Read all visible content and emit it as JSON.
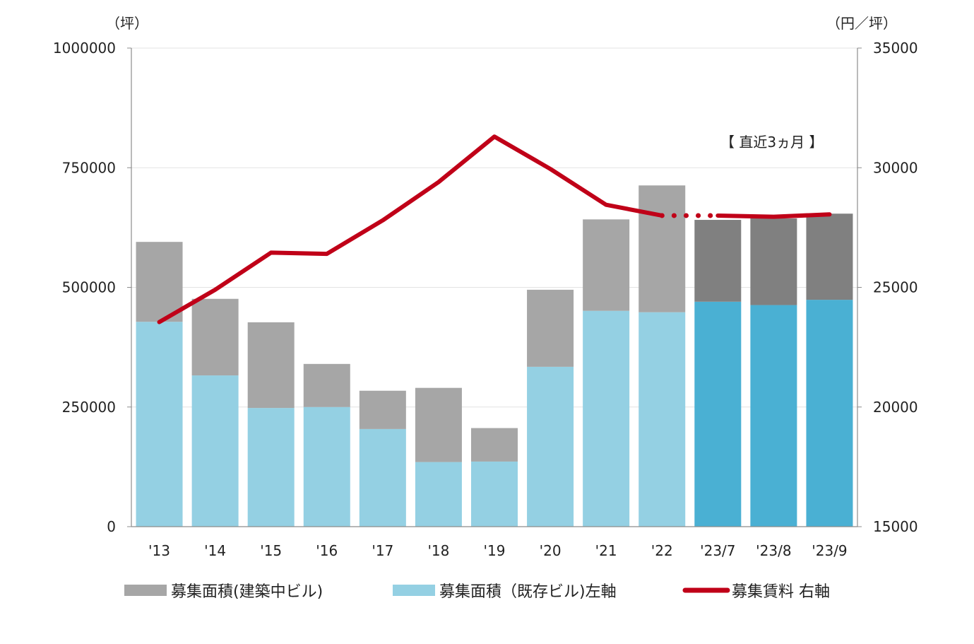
{
  "chart_data": {
    "type": "bar",
    "title": "",
    "categories": [
      "'13",
      "'14",
      "'15",
      "'16",
      "'17",
      "'18",
      "'19",
      "'20",
      "'21",
      "'22",
      "'23/7",
      "'23/8",
      "'23/9"
    ],
    "series": [
      {
        "name": "募集面積(既存ビル)左軸",
        "type": "bar",
        "axis": "left",
        "color": "#94d0e3",
        "highlight_color": "#4ab0d3",
        "values": [
          428000,
          316000,
          248000,
          250000,
          204000,
          135000,
          136000,
          334000,
          451000,
          448000,
          470000,
          463000,
          474000
        ]
      },
      {
        "name": "募集面積(建築中ビル)",
        "type": "bar",
        "axis": "left",
        "color": "#a6a6a6",
        "highlight_color": "#808080",
        "values": [
          167000,
          160000,
          179000,
          90000,
          80000,
          155000,
          70000,
          161000,
          191000,
          265000,
          171000,
          181000,
          180000
        ]
      },
      {
        "name": "募集賃料 右軸",
        "type": "line",
        "axis": "right",
        "color": "#c00018",
        "values": [
          23550,
          24900,
          26450,
          26400,
          27800,
          29400,
          31300,
          29950,
          28450,
          28000,
          28000,
          27950,
          28050
        ]
      }
    ],
    "highlight_from_index": 10,
    "dotted_segment": [
      9,
      10
    ],
    "left_axis": {
      "unit": "（坪）",
      "ylim": [
        0,
        1000000
      ],
      "ticks": [
        "0",
        "250000",
        "500000",
        "750000",
        "1000000"
      ]
    },
    "right_axis": {
      "unit": "（円／坪）",
      "ylim": [
        15000,
        35000
      ],
      "ticks": [
        "15000",
        "20000",
        "25000",
        "30000",
        "35000"
      ]
    },
    "annotation": "【 直近3ヵ月 】",
    "legend": {
      "placement": "bottom",
      "items": [
        {
          "label": "募集面積(建築中ビル)",
          "color": "#a6a6a6",
          "marker": "bar"
        },
        {
          "label": "募集面積（既存ビル)左軸",
          "color": "#94d0e3",
          "marker": "bar"
        },
        {
          "label": "募集賃料 右軸",
          "color": "#c00018",
          "marker": "line"
        }
      ]
    },
    "grid": true
  }
}
